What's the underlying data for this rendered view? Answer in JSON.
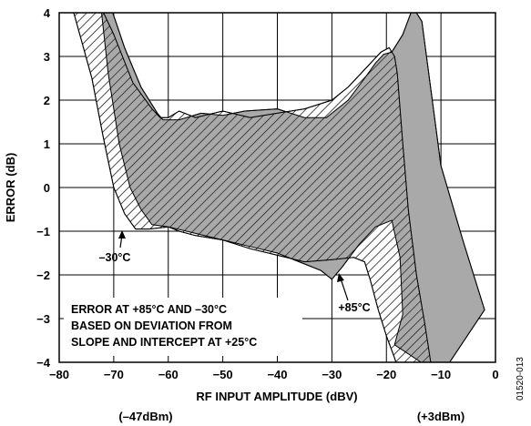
{
  "chart_data": {
    "type": "area",
    "title": "",
    "xlabel": "RF INPUT AMPLITUDE (dBV)",
    "ylabel": "ERROR (dB)",
    "xlim": [
      -80,
      0
    ],
    "ylim": [
      -4,
      4
    ],
    "x_ticks": [
      -80,
      -70,
      -60,
      -50,
      -40,
      -30,
      -20,
      -10,
      0
    ],
    "y_ticks": [
      -4,
      -3,
      -2,
      -1,
      0,
      1,
      2,
      3,
      4
    ],
    "grid": true,
    "x_sub_labels": [
      {
        "x": -64,
        "text": "(–47dBm)"
      },
      {
        "x": -4,
        "text": "(+3dBm)"
      }
    ],
    "series": [
      {
        "name": "–30°C",
        "fill": "hatched",
        "upper": [
          [
            -73,
            4.3
          ],
          [
            -70,
            3.5
          ],
          [
            -66.5,
            2.4
          ],
          [
            -63,
            1.8
          ],
          [
            -61.5,
            1.6
          ],
          [
            -60,
            1.6
          ],
          [
            -58,
            1.75
          ],
          [
            -55,
            1.6
          ],
          [
            -50,
            1.75
          ],
          [
            -45,
            1.6
          ],
          [
            -40,
            1.7
          ],
          [
            -35,
            1.8
          ],
          [
            -30,
            2.0
          ],
          [
            -27,
            2.3
          ],
          [
            -24,
            2.7
          ],
          [
            -21,
            3.1
          ],
          [
            -19.5,
            3.2
          ],
          [
            -18.5,
            3.0
          ],
          [
            -18,
            2.6
          ],
          [
            -17,
            1.0
          ],
          [
            -16,
            -0.5
          ],
          [
            -14.5,
            -2.0
          ],
          [
            -13,
            -3.1
          ],
          [
            -11.5,
            -4.3
          ]
        ],
        "lower": [
          [
            -78,
            4.3
          ],
          [
            -74,
            2.5
          ],
          [
            -72,
            1.2
          ],
          [
            -70,
            0.0
          ],
          [
            -68,
            -0.6
          ],
          [
            -66,
            -0.95
          ],
          [
            -63.5,
            -0.95
          ],
          [
            -60,
            -0.9
          ],
          [
            -58,
            -1.0
          ],
          [
            -55,
            -1.1
          ],
          [
            -50,
            -1.2
          ],
          [
            -45,
            -1.4
          ],
          [
            -40,
            -1.55
          ],
          [
            -35,
            -1.7
          ],
          [
            -30,
            -1.65
          ],
          [
            -26,
            -1.6
          ],
          [
            -24,
            -1.7
          ],
          [
            -23,
            -2.1
          ],
          [
            -21.5,
            -2.8
          ],
          [
            -20,
            -3.4
          ],
          [
            -18.5,
            -3.9
          ],
          [
            -17.5,
            -4.3
          ]
        ]
      },
      {
        "name": "+85°C",
        "fill": "gray",
        "upper": [
          [
            -71,
            4.3
          ],
          [
            -68,
            3.2
          ],
          [
            -65,
            2.3
          ],
          [
            -62,
            1.7
          ],
          [
            -61,
            1.55
          ],
          [
            -58,
            1.55
          ],
          [
            -54,
            1.7
          ],
          [
            -50,
            1.65
          ],
          [
            -46,
            1.75
          ],
          [
            -40,
            1.8
          ],
          [
            -35,
            1.6
          ],
          [
            -31,
            1.6
          ],
          [
            -27,
            2.0
          ],
          [
            -24,
            2.5
          ],
          [
            -22,
            2.85
          ],
          [
            -20.5,
            3.05
          ],
          [
            -19,
            3.1
          ],
          [
            -17,
            3.5
          ],
          [
            -15.5,
            4.0
          ],
          [
            -14.5,
            4.0
          ],
          [
            -13.5,
            3.8
          ],
          [
            -10,
            0.5
          ],
          [
            -6,
            -1.2
          ],
          [
            -2,
            -2.8
          ],
          [
            -10,
            -4.3
          ],
          [
            -18.5,
            -3.6
          ],
          [
            -17,
            -2.9
          ],
          [
            -17.5,
            -1.6
          ],
          [
            -19,
            -0.75
          ],
          [
            -22,
            -0.9
          ],
          [
            -25,
            -1.3
          ],
          [
            -28,
            -1.8
          ],
          [
            -30,
            -2.1
          ],
          [
            -32,
            -1.9
          ],
          [
            -36,
            -1.7
          ],
          [
            -40,
            -1.5
          ],
          [
            -45,
            -1.35
          ],
          [
            -50,
            -1.2
          ],
          [
            -55,
            -1.05
          ],
          [
            -60,
            -0.9
          ],
          [
            -63,
            -0.85
          ],
          [
            -65,
            -0.5
          ],
          [
            -67,
            0.0
          ],
          [
            -69,
            1.0
          ],
          [
            -71,
            2.6
          ],
          [
            -72.5,
            4.3
          ]
        ]
      }
    ],
    "annotations": [
      {
        "text": "–30°C",
        "x": -65,
        "y": -1.55
      },
      {
        "text": "+85°C",
        "x": -28,
        "y": -2.65
      }
    ],
    "legend_lines": [
      "ERROR AT +85°C AND –30°C",
      "BASED ON DEVIATION FROM",
      "SLOPE AND INTERCEPT AT +25°C"
    ],
    "figure_id": "01520-013"
  }
}
